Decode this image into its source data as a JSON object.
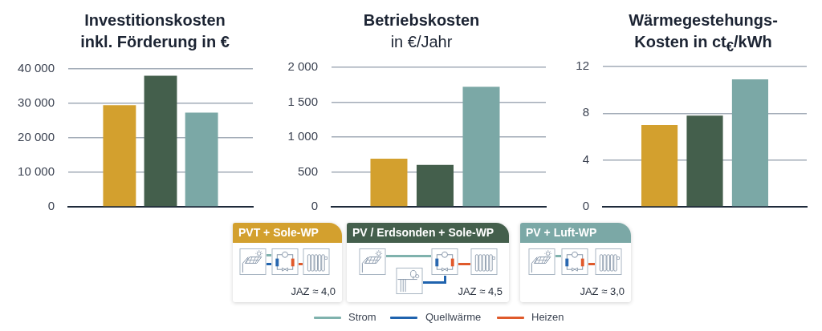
{
  "chart_data": [
    {
      "type": "bar",
      "title": "Investitionskosten inkl. Förderung in €",
      "categories": [
        null,
        null,
        null
      ],
      "values": [
        29500,
        38000,
        27300
      ],
      "colors": [
        "#d3a02e",
        "#445f4c",
        "#7ba8a6"
      ],
      "ylim": [
        0,
        40000
      ],
      "yticks": [
        0,
        {
          "value": 10000,
          "label": "10 000"
        },
        {
          "value": 20000,
          "label": "20 000"
        },
        {
          "value": 30000,
          "label": "30 000"
        },
        {
          "value": 40000,
          "label": "40 000"
        }
      ],
      "grid": "y"
    },
    {
      "type": "bar",
      "title": "Betriebskosten",
      "subtitle": "in €/Jahr",
      "categories": [
        null,
        null,
        null
      ],
      "values": [
        690,
        600,
        1720
      ],
      "colors": [
        "#d3a02e",
        "#445f4c",
        "#7ba8a6"
      ],
      "ylim": [
        0,
        2000
      ],
      "yticks": [
        0,
        500,
        {
          "value": 1000,
          "label": "1 000"
        },
        {
          "value": 1500,
          "label": "1 500"
        },
        {
          "value": 2000,
          "label": "2 000"
        }
      ],
      "grid": "y"
    },
    {
      "type": "bar",
      "title": "Wärmegestehungs-Kosten in ct$_{€}$/kWh",
      "categories": [
        null,
        null,
        null
      ],
      "values": [
        7.0,
        7.8,
        10.9
      ],
      "colors": [
        "#d3a02e",
        "#445f4c",
        "#7ba8a6"
      ],
      "ylim": [
        0,
        12
      ],
      "yticks": [
        0,
        4,
        8,
        12
      ],
      "grid": "y"
    },
    {
      "type": "other",
      "categories": [
        "PVT + Sole-WP",
        "PV / Erdsonden + Sole-WP",
        "PV + Luft-WP"
      ],
      "colors": [
        "#d3a02e",
        "#445f4c",
        "#7ba8a6"
      ],
      "annotations": [
        "JAZ ≈ 4,0",
        "JAZ ≈ 4,5",
        "JAZ ≈ 3,0",
        "Strom",
        "Quellwärme",
        "Heizen"
      ]
    }
  ]
}
